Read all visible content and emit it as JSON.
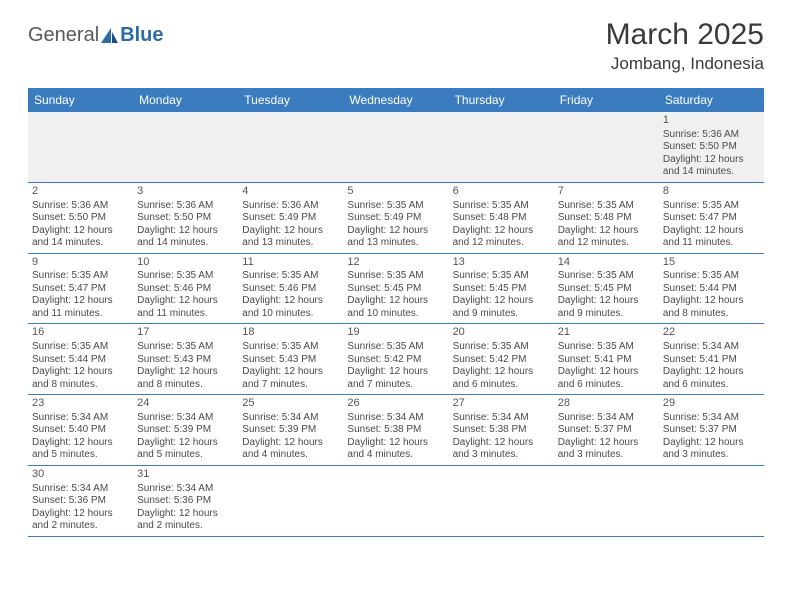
{
  "logo": {
    "part1": "General",
    "part2": "Blue"
  },
  "title": "March 2025",
  "location": "Jombang, Indonesia",
  "header_color": "#3b7bbf",
  "day_headers": [
    "Sunday",
    "Monday",
    "Tuesday",
    "Wednesday",
    "Thursday",
    "Friday",
    "Saturday"
  ],
  "weeks": [
    [
      null,
      null,
      null,
      null,
      null,
      null,
      {
        "d": "1",
        "sr": "Sunrise: 5:36 AM",
        "ss": "Sunset: 5:50 PM",
        "dl1": "Daylight: 12 hours",
        "dl2": "and 14 minutes."
      }
    ],
    [
      {
        "d": "2",
        "sr": "Sunrise: 5:36 AM",
        "ss": "Sunset: 5:50 PM",
        "dl1": "Daylight: 12 hours",
        "dl2": "and 14 minutes."
      },
      {
        "d": "3",
        "sr": "Sunrise: 5:36 AM",
        "ss": "Sunset: 5:50 PM",
        "dl1": "Daylight: 12 hours",
        "dl2": "and 14 minutes."
      },
      {
        "d": "4",
        "sr": "Sunrise: 5:36 AM",
        "ss": "Sunset: 5:49 PM",
        "dl1": "Daylight: 12 hours",
        "dl2": "and 13 minutes."
      },
      {
        "d": "5",
        "sr": "Sunrise: 5:35 AM",
        "ss": "Sunset: 5:49 PM",
        "dl1": "Daylight: 12 hours",
        "dl2": "and 13 minutes."
      },
      {
        "d": "6",
        "sr": "Sunrise: 5:35 AM",
        "ss": "Sunset: 5:48 PM",
        "dl1": "Daylight: 12 hours",
        "dl2": "and 12 minutes."
      },
      {
        "d": "7",
        "sr": "Sunrise: 5:35 AM",
        "ss": "Sunset: 5:48 PM",
        "dl1": "Daylight: 12 hours",
        "dl2": "and 12 minutes."
      },
      {
        "d": "8",
        "sr": "Sunrise: 5:35 AM",
        "ss": "Sunset: 5:47 PM",
        "dl1": "Daylight: 12 hours",
        "dl2": "and 11 minutes."
      }
    ],
    [
      {
        "d": "9",
        "sr": "Sunrise: 5:35 AM",
        "ss": "Sunset: 5:47 PM",
        "dl1": "Daylight: 12 hours",
        "dl2": "and 11 minutes."
      },
      {
        "d": "10",
        "sr": "Sunrise: 5:35 AM",
        "ss": "Sunset: 5:46 PM",
        "dl1": "Daylight: 12 hours",
        "dl2": "and 11 minutes."
      },
      {
        "d": "11",
        "sr": "Sunrise: 5:35 AM",
        "ss": "Sunset: 5:46 PM",
        "dl1": "Daylight: 12 hours",
        "dl2": "and 10 minutes."
      },
      {
        "d": "12",
        "sr": "Sunrise: 5:35 AM",
        "ss": "Sunset: 5:45 PM",
        "dl1": "Daylight: 12 hours",
        "dl2": "and 10 minutes."
      },
      {
        "d": "13",
        "sr": "Sunrise: 5:35 AM",
        "ss": "Sunset: 5:45 PM",
        "dl1": "Daylight: 12 hours",
        "dl2": "and 9 minutes."
      },
      {
        "d": "14",
        "sr": "Sunrise: 5:35 AM",
        "ss": "Sunset: 5:45 PM",
        "dl1": "Daylight: 12 hours",
        "dl2": "and 9 minutes."
      },
      {
        "d": "15",
        "sr": "Sunrise: 5:35 AM",
        "ss": "Sunset: 5:44 PM",
        "dl1": "Daylight: 12 hours",
        "dl2": "and 8 minutes."
      }
    ],
    [
      {
        "d": "16",
        "sr": "Sunrise: 5:35 AM",
        "ss": "Sunset: 5:44 PM",
        "dl1": "Daylight: 12 hours",
        "dl2": "and 8 minutes."
      },
      {
        "d": "17",
        "sr": "Sunrise: 5:35 AM",
        "ss": "Sunset: 5:43 PM",
        "dl1": "Daylight: 12 hours",
        "dl2": "and 8 minutes."
      },
      {
        "d": "18",
        "sr": "Sunrise: 5:35 AM",
        "ss": "Sunset: 5:43 PM",
        "dl1": "Daylight: 12 hours",
        "dl2": "and 7 minutes."
      },
      {
        "d": "19",
        "sr": "Sunrise: 5:35 AM",
        "ss": "Sunset: 5:42 PM",
        "dl1": "Daylight: 12 hours",
        "dl2": "and 7 minutes."
      },
      {
        "d": "20",
        "sr": "Sunrise: 5:35 AM",
        "ss": "Sunset: 5:42 PM",
        "dl1": "Daylight: 12 hours",
        "dl2": "and 6 minutes."
      },
      {
        "d": "21",
        "sr": "Sunrise: 5:35 AM",
        "ss": "Sunset: 5:41 PM",
        "dl1": "Daylight: 12 hours",
        "dl2": "and 6 minutes."
      },
      {
        "d": "22",
        "sr": "Sunrise: 5:34 AM",
        "ss": "Sunset: 5:41 PM",
        "dl1": "Daylight: 12 hours",
        "dl2": "and 6 minutes."
      }
    ],
    [
      {
        "d": "23",
        "sr": "Sunrise: 5:34 AM",
        "ss": "Sunset: 5:40 PM",
        "dl1": "Daylight: 12 hours",
        "dl2": "and 5 minutes."
      },
      {
        "d": "24",
        "sr": "Sunrise: 5:34 AM",
        "ss": "Sunset: 5:39 PM",
        "dl1": "Daylight: 12 hours",
        "dl2": "and 5 minutes."
      },
      {
        "d": "25",
        "sr": "Sunrise: 5:34 AM",
        "ss": "Sunset: 5:39 PM",
        "dl1": "Daylight: 12 hours",
        "dl2": "and 4 minutes."
      },
      {
        "d": "26",
        "sr": "Sunrise: 5:34 AM",
        "ss": "Sunset: 5:38 PM",
        "dl1": "Daylight: 12 hours",
        "dl2": "and 4 minutes."
      },
      {
        "d": "27",
        "sr": "Sunrise: 5:34 AM",
        "ss": "Sunset: 5:38 PM",
        "dl1": "Daylight: 12 hours",
        "dl2": "and 3 minutes."
      },
      {
        "d": "28",
        "sr": "Sunrise: 5:34 AM",
        "ss": "Sunset: 5:37 PM",
        "dl1": "Daylight: 12 hours",
        "dl2": "and 3 minutes."
      },
      {
        "d": "29",
        "sr": "Sunrise: 5:34 AM",
        "ss": "Sunset: 5:37 PM",
        "dl1": "Daylight: 12 hours",
        "dl2": "and 3 minutes."
      }
    ],
    [
      {
        "d": "30",
        "sr": "Sunrise: 5:34 AM",
        "ss": "Sunset: 5:36 PM",
        "dl1": "Daylight: 12 hours",
        "dl2": "and 2 minutes."
      },
      {
        "d": "31",
        "sr": "Sunrise: 5:34 AM",
        "ss": "Sunset: 5:36 PM",
        "dl1": "Daylight: 12 hours",
        "dl2": "and 2 minutes."
      },
      null,
      null,
      null,
      null,
      null
    ]
  ]
}
